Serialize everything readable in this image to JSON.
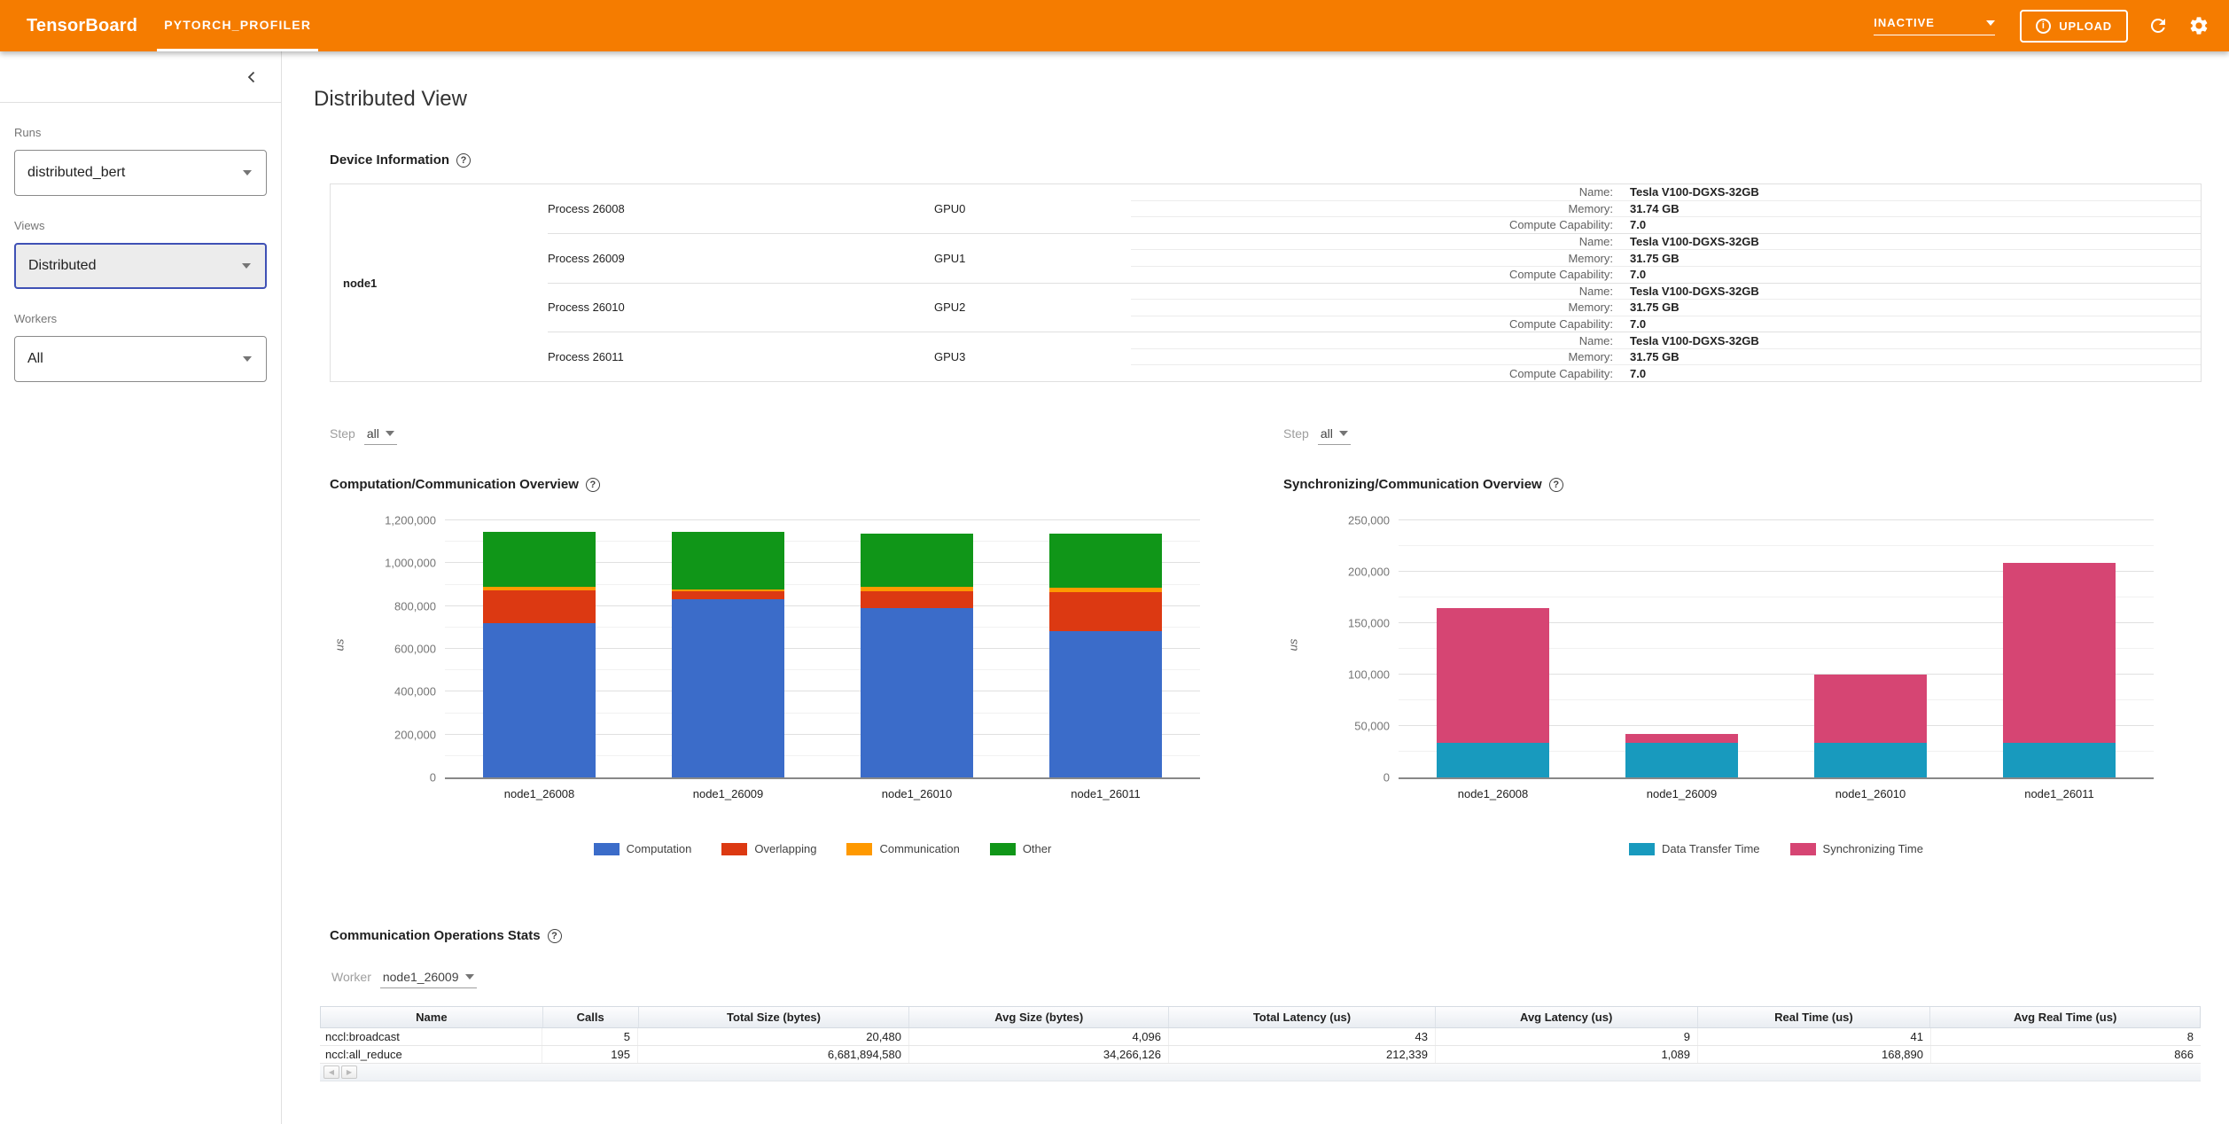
{
  "header": {
    "logo": "TensorBoard",
    "tab": "PYTORCH_PROFILER",
    "status": "INACTIVE",
    "upload_label": "UPLOAD"
  },
  "sidebar": {
    "runs_label": "Runs",
    "runs_value": "distributed_bert",
    "views_label": "Views",
    "views_value": "Distributed",
    "workers_label": "Workers",
    "workers_value": "All"
  },
  "main": {
    "title": "Distributed View",
    "device_info": {
      "title": "Device Information",
      "node": "node1",
      "name_label": "Name:",
      "memory_label": "Memory:",
      "cc_label": "Compute Capability:",
      "gpus": [
        {
          "process": "Process 26008",
          "gpu": "GPU0",
          "name": "Tesla V100-DGXS-32GB",
          "memory": "31.74 GB",
          "cc": "7.0"
        },
        {
          "process": "Process 26009",
          "gpu": "GPU1",
          "name": "Tesla V100-DGXS-32GB",
          "memory": "31.75 GB",
          "cc": "7.0"
        },
        {
          "process": "Process 26010",
          "gpu": "GPU2",
          "name": "Tesla V100-DGXS-32GB",
          "memory": "31.75 GB",
          "cc": "7.0"
        },
        {
          "process": "Process 26011",
          "gpu": "GPU3",
          "name": "Tesla V100-DGXS-32GB",
          "memory": "31.75 GB",
          "cc": "7.0"
        }
      ]
    },
    "step_label": "Step",
    "step_value": "all",
    "comm_ops": {
      "title": "Communication Operations Stats",
      "worker_label": "Worker",
      "worker_value": "node1_26009",
      "columns": [
        "Name",
        "Calls",
        "Total Size (bytes)",
        "Avg Size (bytes)",
        "Total Latency (us)",
        "Avg Latency (us)",
        "Real Time (us)",
        "Avg Real Time (us)"
      ],
      "rows": [
        [
          "nccl:broadcast",
          "5",
          "20,480",
          "4,096",
          "43",
          "9",
          "41",
          "8"
        ],
        [
          "nccl:all_reduce",
          "195",
          "6,681,894,580",
          "34,266,126",
          "212,339",
          "1,089",
          "168,890",
          "866"
        ]
      ]
    }
  },
  "chart_data": [
    {
      "type": "bar",
      "stacked": true,
      "title": "Computation/Communication Overview",
      "categories": [
        "node1_26008",
        "node1_26009",
        "node1_26010",
        "node1_26011"
      ],
      "series": [
        {
          "name": "Computation",
          "color": "#3b6cc9",
          "values": [
            718000,
            830000,
            790000,
            683000
          ]
        },
        {
          "name": "Overlapping",
          "color": "#dc3912",
          "values": [
            157000,
            40000,
            80000,
            183000
          ]
        },
        {
          "name": "Communication",
          "color": "#ff9900",
          "values": [
            13000,
            7000,
            18000,
            19000
          ]
        },
        {
          "name": "Other",
          "color": "#109618",
          "values": [
            257000,
            268000,
            252000,
            255000
          ]
        }
      ],
      "xlabel": "",
      "ylabel": "us",
      "ylim": [
        0,
        1200000
      ],
      "major_tick": 200000,
      "minor_tick": 100000,
      "grid": true,
      "legend_position": "bottom"
    },
    {
      "type": "bar",
      "stacked": true,
      "title": "Synchronizing/Communication Overview",
      "categories": [
        "node1_26008",
        "node1_26009",
        "node1_26010",
        "node1_26011"
      ],
      "series": [
        {
          "name": "Data Transfer Time",
          "color": "#189abe",
          "values": [
            34000,
            34000,
            34000,
            34000
          ]
        },
        {
          "name": "Synchronizing Time",
          "color": "#d64573",
          "values": [
            131000,
            8500,
            66000,
            175000
          ]
        }
      ],
      "xlabel": "",
      "ylabel": "us",
      "ylim": [
        0,
        250000
      ],
      "major_tick": 50000,
      "minor_tick": 25000,
      "grid": true,
      "legend_position": "bottom"
    }
  ]
}
